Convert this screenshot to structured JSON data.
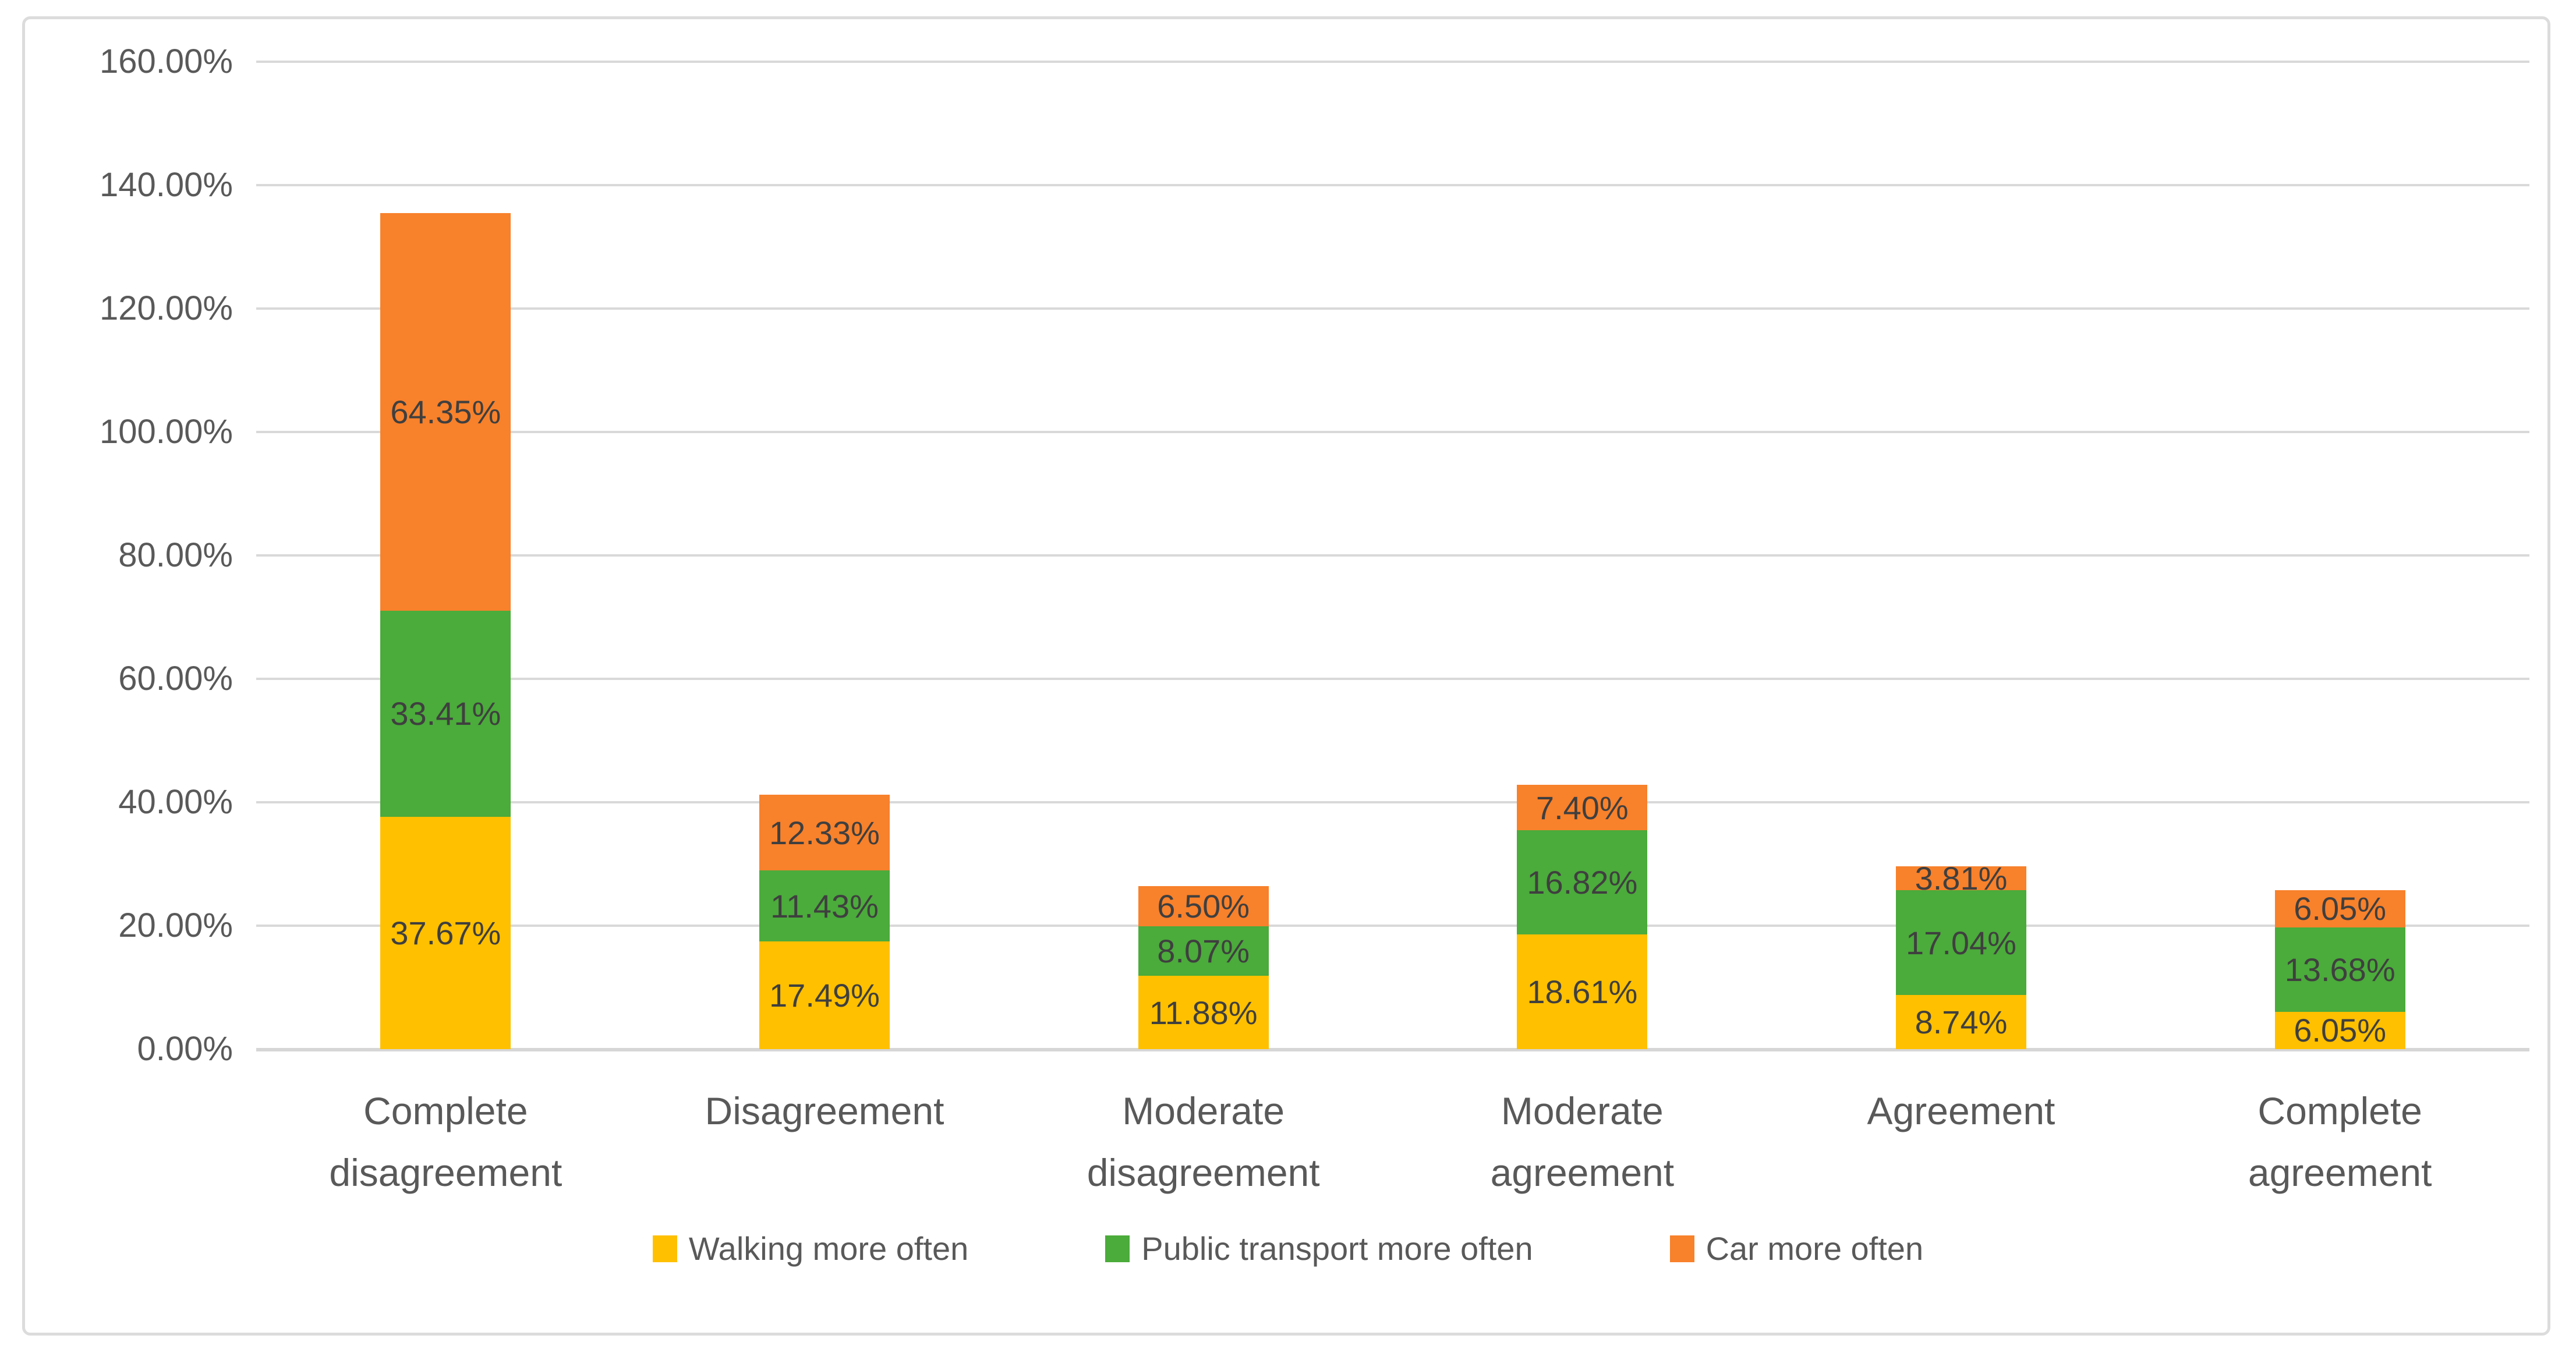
{
  "chart_data": {
    "type": "bar",
    "stacked": true,
    "title": "",
    "xlabel": "",
    "ylabel": "",
    "categories": [
      "Complete disagreement",
      "Disagreement",
      "Moderate disagreement",
      "Moderate agreement",
      "Agreement",
      "Complete agreement"
    ],
    "series": [
      {
        "name": "Walking more often",
        "color": "#FFC000",
        "values": [
          37.67,
          17.49,
          11.88,
          18.61,
          8.74,
          6.05
        ]
      },
      {
        "name": "Public transport more often",
        "color": "#4BAB3B",
        "values": [
          33.41,
          11.43,
          8.07,
          16.82,
          17.04,
          13.68
        ]
      },
      {
        "name": "Car more often",
        "color": "#F8812B",
        "values": [
          64.35,
          12.33,
          6.5,
          7.4,
          3.81,
          6.05
        ]
      }
    ],
    "data_labels": [
      [
        "37.67%",
        "17.49%",
        "11.88%",
        "18.61%",
        "8.74%",
        "6.05%"
      ],
      [
        "33.41%",
        "11.43%",
        "8.07%",
        "16.82%",
        "17.04%",
        "13.68%"
      ],
      [
        "64.35%",
        "12.33%",
        "6.50%",
        "7.40%",
        "3.81%",
        "6.05%"
      ]
    ],
    "y_axis": {
      "ticks": [
        "0.00%",
        "20.00%",
        "40.00%",
        "60.00%",
        "80.00%",
        "100.00%",
        "120.00%",
        "140.00%",
        "160.00%"
      ],
      "min": 0,
      "max": 160,
      "step": 20
    },
    "legend": {
      "position": "bottom",
      "entries": [
        "Walking more often",
        "Public transport more often",
        "Car more often"
      ]
    },
    "grid": true,
    "colors": {
      "gridline": "#d9d9d9",
      "tick_text": "#595959",
      "data_label_text": "#3f3f3f",
      "frame_border": "#dcdcdc"
    }
  }
}
